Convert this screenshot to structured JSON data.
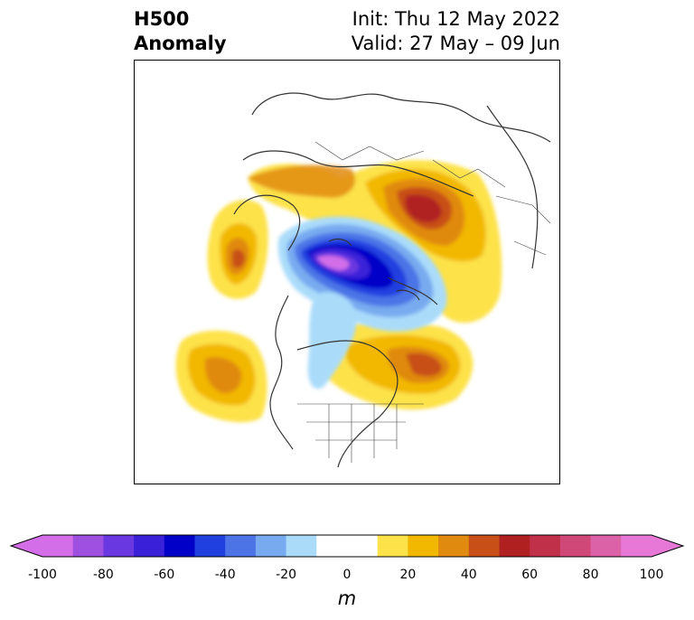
{
  "title": {
    "line1": "H500",
    "line2": "Anomaly",
    "init": "Init: Thu 12 May 2022",
    "valid": "Valid: 27 May – 09 Jun"
  },
  "colorbar": {
    "unit": "m",
    "ticks": [
      "-100",
      "-80",
      "-60",
      "-40",
      "-20",
      "0",
      "20",
      "40",
      "60",
      "80",
      "100"
    ],
    "colors": [
      "#d36ee8",
      "#a050e0",
      "#6a38e0",
      "#3a20d8",
      "#0000c8",
      "#2040e0",
      "#4c74e6",
      "#78aaf0",
      "#aadcfa",
      "#ffffff",
      "#ffffff",
      "#fde24a",
      "#f2b800",
      "#e08a10",
      "#c85018",
      "#b02020",
      "#c03048",
      "#d04878",
      "#dc62a8",
      "#e878d8"
    ]
  }
}
